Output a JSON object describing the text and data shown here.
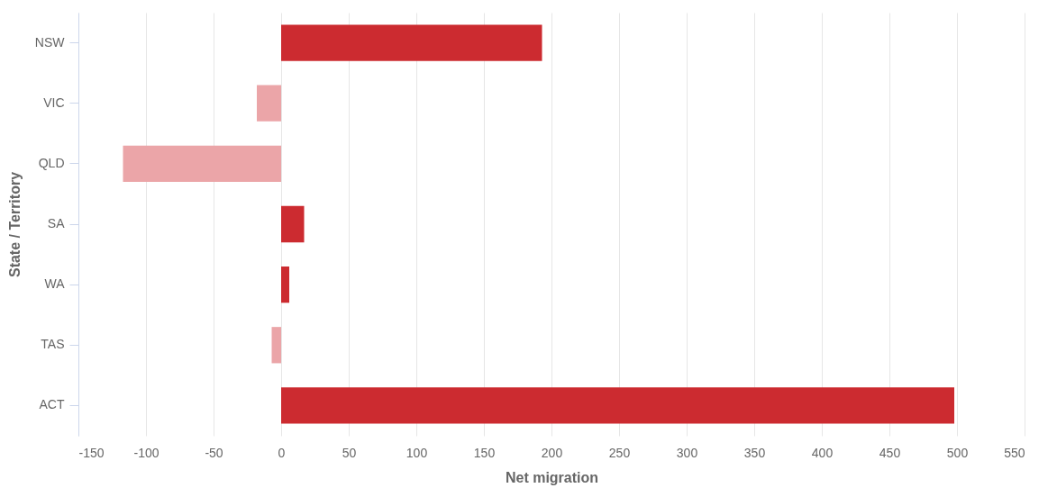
{
  "chart_data": {
    "type": "bar",
    "orientation": "horizontal",
    "xlabel": "Net migration",
    "ylabel": "State / Territory",
    "categories": [
      "NSW",
      "VIC",
      "QLD",
      "SA",
      "WA",
      "TAS",
      "ACT"
    ],
    "values": [
      193,
      -18,
      -117,
      17,
      6,
      -7,
      498
    ],
    "colors": [
      "#cc2b30",
      "#eba5a8",
      "#eba5a8",
      "#cc2b30",
      "#cc2b30",
      "#eba5a8",
      "#cc2b30"
    ],
    "xlim": [
      -150,
      550
    ],
    "xticks": [
      -150,
      -100,
      -50,
      0,
      50,
      100,
      150,
      200,
      250,
      300,
      350,
      400,
      450,
      500,
      550
    ],
    "grid": "x"
  }
}
